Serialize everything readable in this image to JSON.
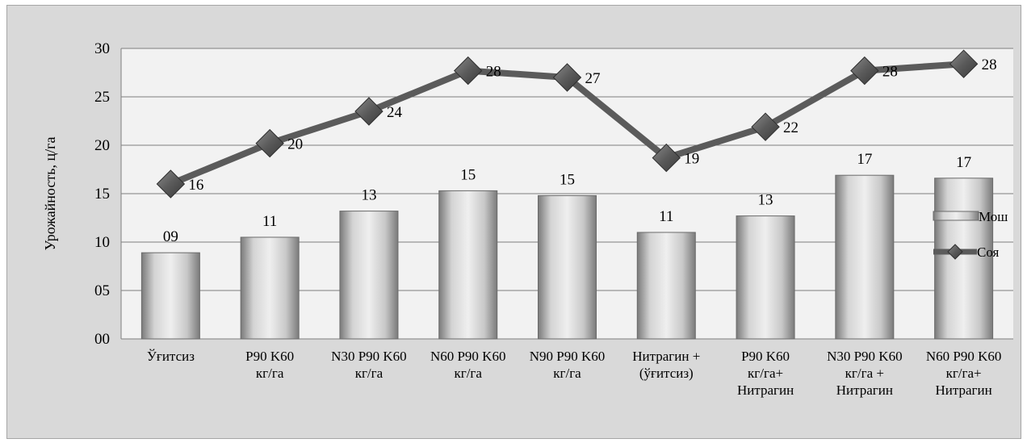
{
  "chart_data": {
    "type": "bar",
    "ylabel": "Урожайность, ц/га",
    "ylim": [
      0,
      30
    ],
    "ytick_labels": [
      "00",
      "05",
      "10",
      "15",
      "20",
      "25",
      "30"
    ],
    "categories": [
      [
        "Ўғитсиз"
      ],
      [
        "P90 K60",
        "кг/га"
      ],
      [
        "N30 P90 K60",
        "кг/га"
      ],
      [
        "N60 P90 K60",
        "кг/га"
      ],
      [
        "N90 P90 K60",
        "кг/га"
      ],
      [
        "Нитрагин +",
        "(ўғитсиз)"
      ],
      [
        "P90 K60",
        "кг/га+",
        "Нитрагин"
      ],
      [
        "N30 P90 K60",
        "кг/га +",
        "Нитрагин"
      ],
      [
        "N60 P90 K60",
        "кг/га+",
        "Нитрагин"
      ]
    ],
    "series": [
      {
        "name": "Мош",
        "kind": "bar",
        "values": [
          8.9,
          10.5,
          13.2,
          15.3,
          14.8,
          11.0,
          12.7,
          16.9,
          16.6
        ],
        "labels": [
          "09",
          "11",
          "13",
          "15",
          "15",
          "11",
          "13",
          "17",
          "17"
        ]
      },
      {
        "name": "Соя",
        "kind": "line",
        "values": [
          16.0,
          20.2,
          23.5,
          27.7,
          27.0,
          18.7,
          21.9,
          27.7,
          28.4
        ],
        "labels": [
          "16",
          "20",
          "24",
          "28",
          "27",
          "19",
          "22",
          "28",
          "28"
        ]
      }
    ],
    "grid": true,
    "legend": "right"
  }
}
